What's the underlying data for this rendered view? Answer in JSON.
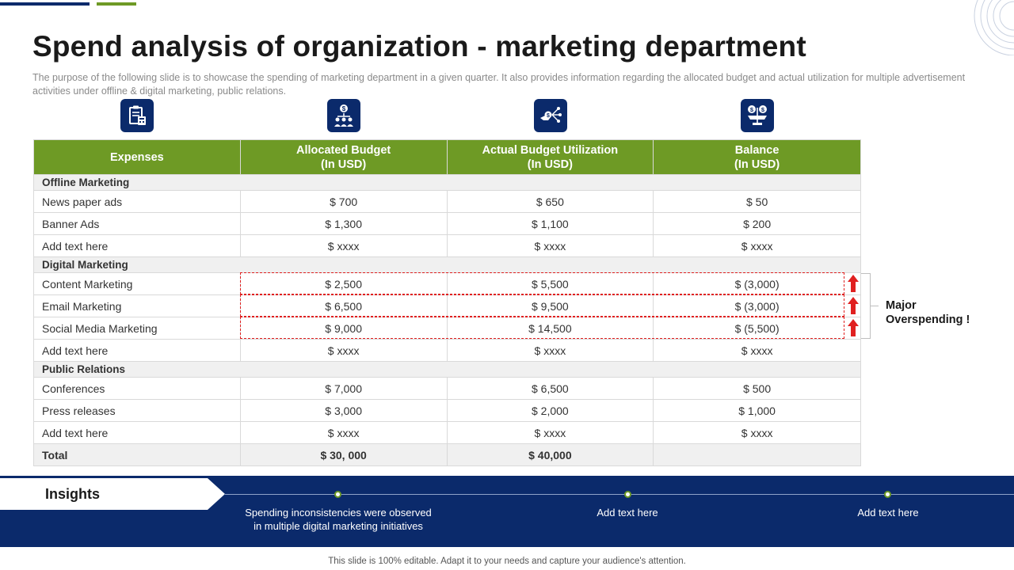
{
  "title": "Spend analysis of organization - marketing department",
  "subtitle": "The purpose of the following slide is to showcase the spending of marketing department in a given quarter. It also provides information regarding the allocated budget and actual utilization for multiple advertisement activities under offline & digital marketing, public relations.",
  "colors": {
    "navy": "#0b2a6b",
    "green": "#6e9a25",
    "red": "#e02020"
  },
  "icons": [
    "clipboard-report-icon",
    "money-team-icon",
    "hand-money-network-icon",
    "balance-scale-icon"
  ],
  "table": {
    "headers": [
      {
        "line1": "Expenses",
        "line2": ""
      },
      {
        "line1": "Allocated Budget",
        "line2": "(In USD)"
      },
      {
        "line1": "Actual Budget Utilization",
        "line2": "(In USD)"
      },
      {
        "line1": "Balance",
        "line2": "(In USD)"
      }
    ],
    "sections": [
      {
        "name": "Offline Marketing",
        "rows": [
          {
            "expense": "News paper ads",
            "allocated": "$ 700",
            "actual": "$ 650",
            "balance": "$ 50"
          },
          {
            "expense": "Banner Ads",
            "allocated": "$ 1,300",
            "actual": "$ 1,100",
            "balance": "$ 200"
          },
          {
            "expense": "Add text here",
            "allocated": "$ xxxx",
            "actual": "$ xxxx",
            "balance": "$ xxxx"
          }
        ]
      },
      {
        "name": "Digital Marketing",
        "rows": [
          {
            "expense": "Content Marketing",
            "allocated": "$ 2,500",
            "actual": "$ 5,500",
            "balance": "$ (3,000)"
          },
          {
            "expense": "Email Marketing",
            "allocated": "$ 6,500",
            "actual": "$ 9,500",
            "balance": "$ (3,000)"
          },
          {
            "expense": "Social Media Marketing",
            "allocated": "$ 9,000",
            "actual": "$ 14,500",
            "balance": "$ (5,500)"
          },
          {
            "expense": "Add text here",
            "allocated": "$ xxxx",
            "actual": "$ xxxx",
            "balance": "$ xxxx"
          }
        ]
      },
      {
        "name": "Public Relations",
        "rows": [
          {
            "expense": "Conferences",
            "allocated": "$ 7,000",
            "actual": "$ 6,500",
            "balance": "$ 500"
          },
          {
            "expense": "Press releases",
            "allocated": "$ 3,000",
            "actual": "$ 2,000",
            "balance": "$ 1,000"
          },
          {
            "expense": "Add text here",
            "allocated": "$ xxxx",
            "actual": "$ xxxx",
            "balance": "$ xxxx"
          }
        ]
      }
    ],
    "total": {
      "label": "Total",
      "allocated": "$ 30, 000",
      "actual": "$ 40,000",
      "balance": ""
    }
  },
  "callout": {
    "line1": "Major",
    "line2": "Overspending !"
  },
  "insights": {
    "label": "Insights",
    "items": [
      {
        "line1": "Spending inconsistencies were observed",
        "line2": "in multiple digital marketing initiatives"
      },
      {
        "line1": "Add text here",
        "line2": ""
      },
      {
        "line1": "Add text here",
        "line2": ""
      }
    ]
  },
  "footer": "This slide is 100% editable. Adapt it to your needs and capture your audience's attention."
}
